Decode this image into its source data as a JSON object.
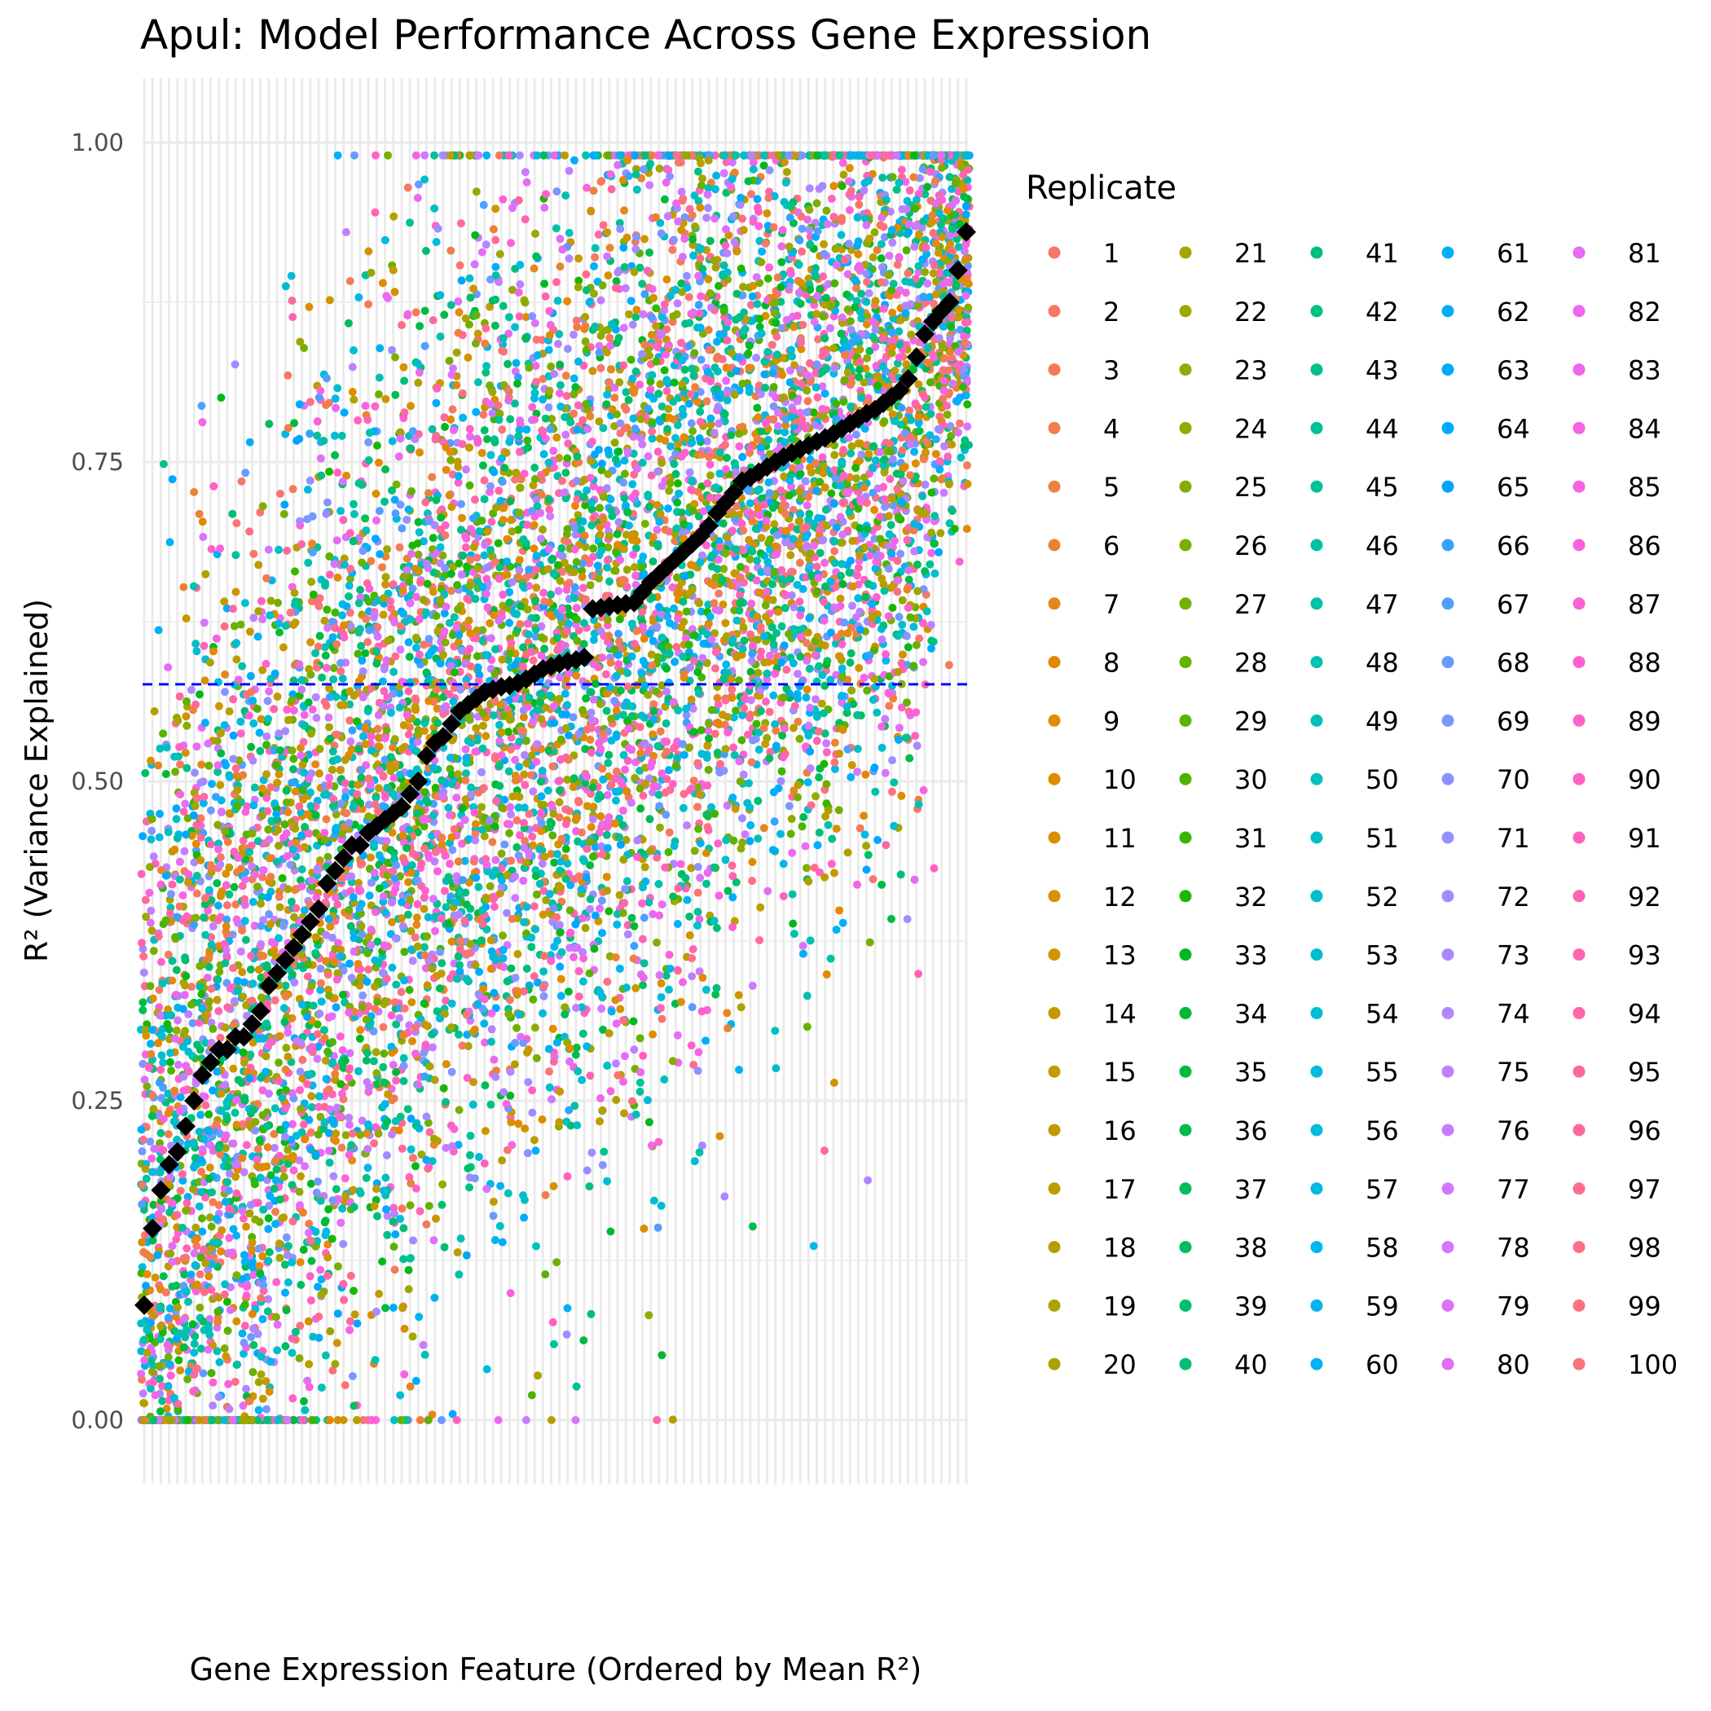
{
  "chart_data": {
    "type": "scatter",
    "title": "Apul: Model Performance Across Gene Expression",
    "xlabel": "Gene Expression Feature (Ordered by Mean R²)",
    "ylabel": "R² (Variance Explained)",
    "ylim": [
      0,
      1
    ],
    "yticks": [
      "0.00",
      "0.25",
      "0.50",
      "0.75",
      "1.00"
    ],
    "ytick_values": [
      0,
      0.25,
      0.5,
      0.75,
      1.0
    ],
    "grid": true,
    "legend_position": "right",
    "legend_title": "Replicate",
    "replicates": [
      1,
      2,
      3,
      4,
      5,
      6,
      7,
      8,
      9,
      10,
      11,
      12,
      13,
      14,
      15,
      16,
      17,
      18,
      19,
      20,
      21,
      22,
      23,
      24,
      25,
      26,
      27,
      28,
      29,
      30,
      31,
      32,
      33,
      34,
      35,
      36,
      37,
      38,
      39,
      40,
      41,
      42,
      43,
      44,
      45,
      46,
      47,
      48,
      49,
      50,
      51,
      52,
      53,
      54,
      55,
      56,
      57,
      58,
      59,
      60,
      61,
      62,
      63,
      64,
      65,
      66,
      67,
      68,
      69,
      70,
      71,
      72,
      73,
      74,
      75,
      76,
      77,
      78,
      79,
      80,
      81,
      82,
      83,
      84,
      85,
      86,
      87,
      88,
      89,
      90,
      91,
      92,
      93,
      94,
      95,
      96,
      97,
      98,
      99,
      100
    ],
    "feature_mean_r2": [
      0.09,
      0.15,
      0.18,
      0.2,
      0.21,
      0.23,
      0.25,
      0.27,
      0.28,
      0.29,
      0.29,
      0.3,
      0.3,
      0.31,
      0.32,
      0.34,
      0.35,
      0.36,
      0.37,
      0.38,
      0.39,
      0.4,
      0.42,
      0.43,
      0.44,
      0.45,
      0.45,
      0.46,
      0.465,
      0.47,
      0.475,
      0.48,
      0.49,
      0.5,
      0.52,
      0.53,
      0.535,
      0.545,
      0.555,
      0.56,
      0.565,
      0.57,
      0.572,
      0.574,
      0.575,
      0.577,
      0.58,
      0.584,
      0.588,
      0.59,
      0.592,
      0.594,
      0.595,
      0.597,
      0.635,
      0.636,
      0.637,
      0.638,
      0.639,
      0.64,
      0.648,
      0.656,
      0.662,
      0.668,
      0.674,
      0.68,
      0.686,
      0.692,
      0.7,
      0.71,
      0.718,
      0.726,
      0.735,
      0.738,
      0.742,
      0.746,
      0.75,
      0.754,
      0.757,
      0.76,
      0.763,
      0.766,
      0.769,
      0.772,
      0.776,
      0.78,
      0.784,
      0.788,
      0.791,
      0.796,
      0.801,
      0.806,
      0.815,
      0.832,
      0.85,
      0.86,
      0.868,
      0.875,
      0.9,
      0.93
    ],
    "reference_line": {
      "y": 0.576,
      "style": "dashed",
      "color": "#0000ff"
    },
    "mean_marker_color": "#000000"
  }
}
